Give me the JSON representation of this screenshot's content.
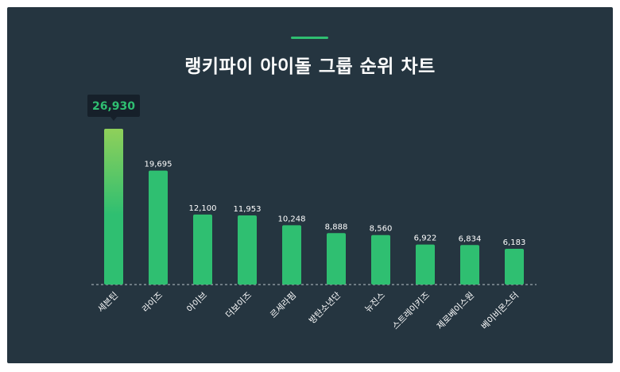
{
  "title": "랭키파이 아이돌 그룹 순위 차트",
  "colors": {
    "background": "#253540",
    "bar": "#2fbf71",
    "bar_highlight_top": "#8fd05a",
    "accent": "#2fbf71",
    "tooltip_bg": "#16202a"
  },
  "chart_data": {
    "type": "bar",
    "title": "랭키파이 아이돌 그룹 순위 차트",
    "categories": [
      "세븐틴",
      "라이즈",
      "아이브",
      "더보이즈",
      "르세라핌",
      "방탄소년단",
      "뉴진스",
      "스트레이키즈",
      "제로베이스원",
      "베이비몬스터"
    ],
    "values": [
      26930,
      19695,
      12100,
      11953,
      10248,
      8888,
      8560,
      6922,
      6834,
      6183
    ],
    "value_labels": [
      "26,930",
      "19,695",
      "12,100",
      "11,953",
      "10,248",
      "8,888",
      "8,560",
      "6,922",
      "6,834",
      "6,183"
    ],
    "highlight_index": 0,
    "ylim": [
      0,
      26930
    ],
    "grid": false,
    "baseline": "dashed"
  }
}
